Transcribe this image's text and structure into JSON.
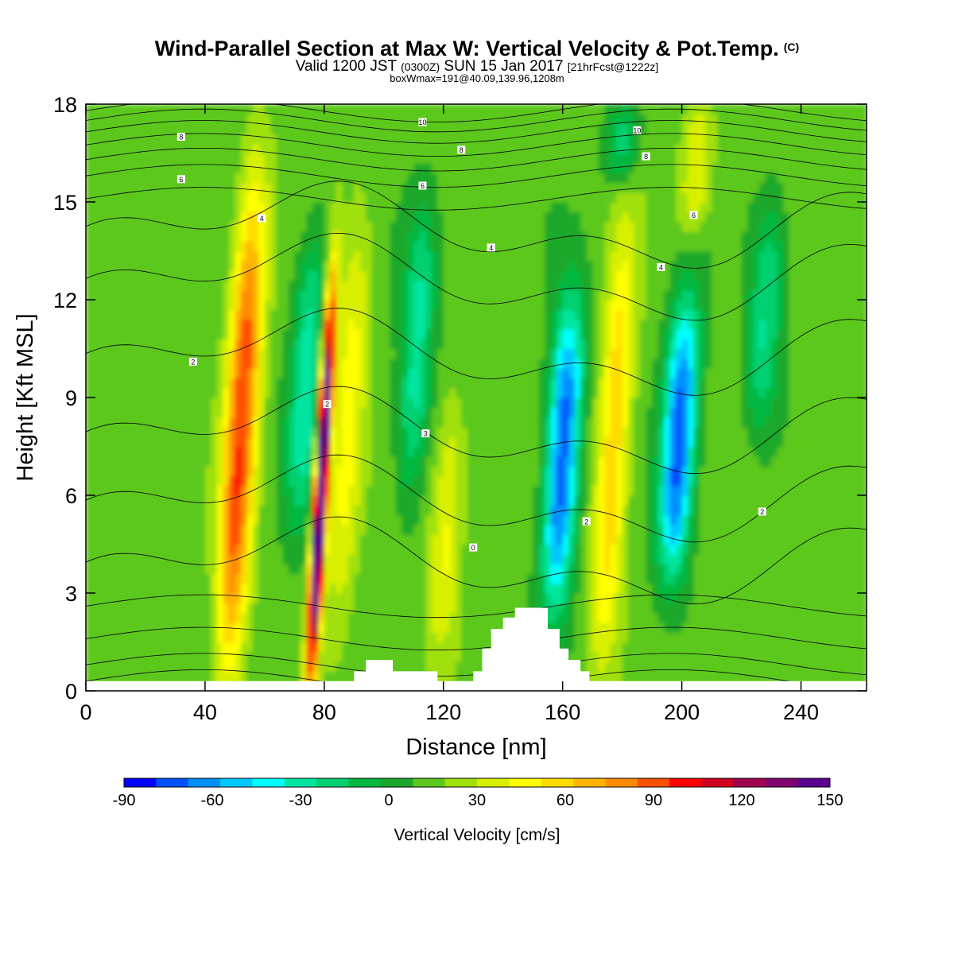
{
  "header": {
    "title": "Wind-Parallel Section at Max W: Vertical Velocity & Pot.Temp.",
    "title_mark": "(C)",
    "valid_prefix": "Valid 1200 JST",
    "valid_z": "(0300Z)",
    "valid_date": "SUN 15 Jan 2017",
    "forecast": "[21hrFcst@1222z]",
    "box_info": "boxWmax=191@40.09,139.96,1208m"
  },
  "chart_data": {
    "type": "heatmap",
    "xlabel": "Distance [nm]",
    "ylabel": "Height [Kft MSL]",
    "xlim": [
      0,
      262
    ],
    "ylim": [
      0,
      18
    ],
    "x_ticks": [
      0,
      40,
      80,
      120,
      160,
      200,
      240
    ],
    "y_ticks": [
      0,
      3,
      6,
      9,
      12,
      15,
      18
    ],
    "colorbar": {
      "label": "Vertical Velocity [cm/s]",
      "min": -90,
      "max": 150,
      "step": 10,
      "tick_values": [
        -90,
        -60,
        -30,
        0,
        30,
        60,
        90,
        120,
        150
      ],
      "colors": [
        "#0000ff",
        "#0050ff",
        "#0090ff",
        "#00c8ff",
        "#00ffff",
        "#00e6a0",
        "#00d070",
        "#00b840",
        "#1aa82a",
        "#5cc81e",
        "#a0e00a",
        "#d8f000",
        "#ffff00",
        "#ffdc00",
        "#ffb400",
        "#ff8c00",
        "#ff5000",
        "#ff0000",
        "#d00020",
        "#a00050",
        "#800070",
        "#5a0090"
      ]
    },
    "vertical_velocity_features": [
      {
        "kind": "updraft",
        "x_center": 52,
        "z_range": [
          0.4,
          15.5
        ],
        "peak": 75
      },
      {
        "kind": "updraft",
        "x_center": 79,
        "z_range": [
          0.2,
          12.5
        ],
        "peak": 150
      },
      {
        "kind": "updraft",
        "x_center": 88,
        "z_range": [
          2,
          15
        ],
        "peak": 30
      },
      {
        "kind": "updraft",
        "x_center": 121,
        "z_range": [
          1,
          9
        ],
        "peak": 28
      },
      {
        "kind": "updraft",
        "x_center": 177,
        "z_range": [
          1,
          14
        ],
        "peak": 45
      },
      {
        "kind": "updraft",
        "x_center": 205,
        "z_range": [
          14,
          18
        ],
        "peak": 28
      },
      {
        "kind": "downdraft",
        "x_center": 74,
        "z_range": [
          5,
          14
        ],
        "peak": -40
      },
      {
        "kind": "downdraft",
        "x_center": 111,
        "z_range": [
          6,
          15
        ],
        "peak": -38
      },
      {
        "kind": "downdraft",
        "x_center": 160,
        "z_range": [
          2.5,
          12
        ],
        "peak": -80
      },
      {
        "kind": "downdraft",
        "x_center": 199,
        "z_range": [
          3.5,
          12
        ],
        "peak": -80
      },
      {
        "kind": "downdraft",
        "x_center": 228,
        "z_range": [
          8,
          15
        ],
        "peak": -35
      },
      {
        "kind": "downdraft",
        "x_center": 180,
        "z_range": [
          15.5,
          18
        ],
        "peak": -30
      }
    ],
    "potential_temperature_labels": [
      {
        "text": "8",
        "x": 32,
        "z": 17
      },
      {
        "text": "6",
        "x": 32,
        "z": 15.7
      },
      {
        "text": "4",
        "x": 59,
        "z": 14.5
      },
      {
        "text": "10",
        "x": 113,
        "z": 17.45
      },
      {
        "text": "8",
        "x": 126,
        "z": 16.6
      },
      {
        "text": "6",
        "x": 113,
        "z": 15.5
      },
      {
        "text": "4",
        "x": 136,
        "z": 13.6
      },
      {
        "text": "10",
        "x": 185,
        "z": 17.2
      },
      {
        "text": "8",
        "x": 188,
        "z": 16.4
      },
      {
        "text": "6",
        "x": 204,
        "z": 14.6
      },
      {
        "text": "4",
        "x": 193,
        "z": 13
      },
      {
        "text": "2",
        "x": 36,
        "z": 10.1
      },
      {
        "text": "2",
        "x": 81,
        "z": 8.8
      },
      {
        "text": "3",
        "x": 114,
        "z": 7.9
      },
      {
        "text": "0",
        "x": 130,
        "z": 4.4
      },
      {
        "text": "2",
        "x": 168,
        "z": 5.2
      },
      {
        "text": "2",
        "x": 227,
        "z": 5.5
      }
    ],
    "terrain": [
      [
        0,
        0.3
      ],
      [
        90,
        0.3
      ],
      [
        90,
        0.6
      ],
      [
        94,
        0.6
      ],
      [
        94,
        0.95
      ],
      [
        103,
        0.95
      ],
      [
        103,
        0.6
      ],
      [
        118,
        0.6
      ],
      [
        118,
        0.3
      ],
      [
        130,
        0.3
      ],
      [
        130,
        0.6
      ],
      [
        133,
        0.6
      ],
      [
        133,
        1.3
      ],
      [
        136,
        1.3
      ],
      [
        136,
        1.9
      ],
      [
        140,
        1.9
      ],
      [
        140,
        2.25
      ],
      [
        144,
        2.25
      ],
      [
        144,
        2.55
      ],
      [
        155,
        2.55
      ],
      [
        155,
        1.9
      ],
      [
        159,
        1.9
      ],
      [
        159,
        1.3
      ],
      [
        162,
        1.3
      ],
      [
        162,
        0.95
      ],
      [
        166,
        0.95
      ],
      [
        166,
        0.6
      ],
      [
        169,
        0.6
      ],
      [
        169,
        0.3
      ],
      [
        262,
        0.3
      ]
    ]
  }
}
